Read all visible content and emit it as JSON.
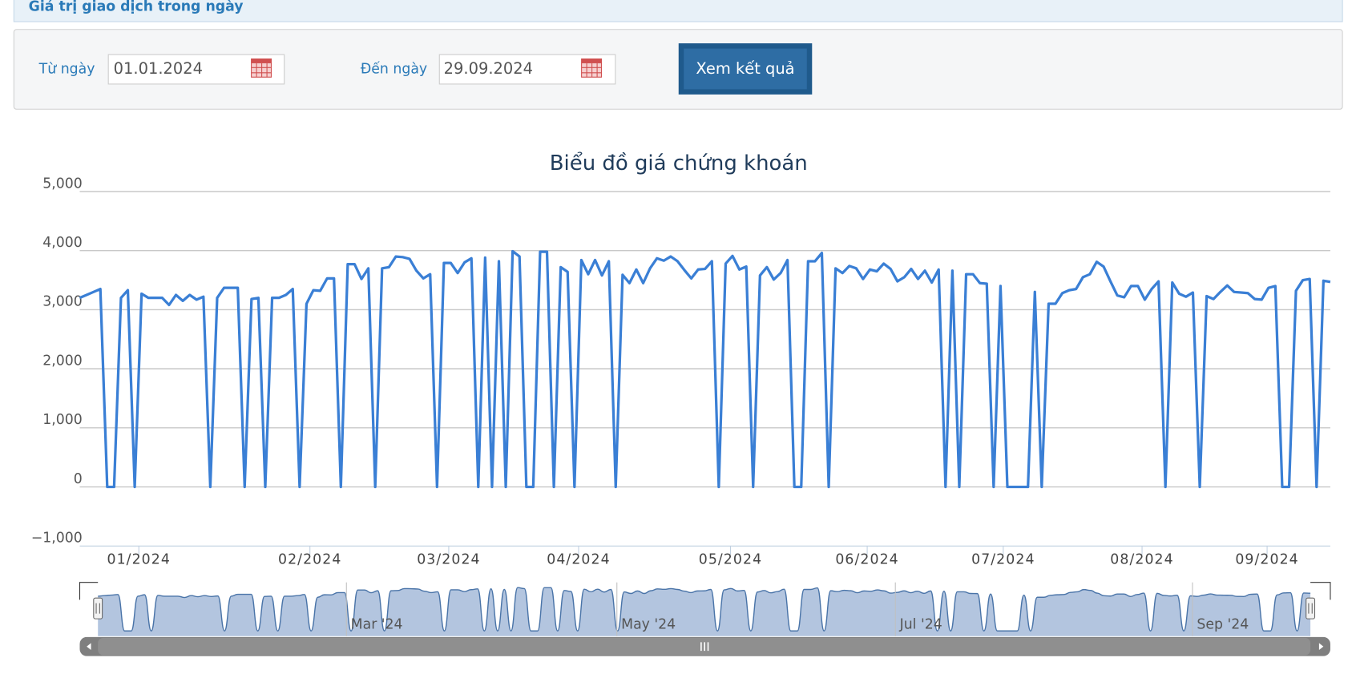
{
  "header": {
    "title": "Giá trị giao dịch trong ngày"
  },
  "form": {
    "from_label": "Từ ngày",
    "from_value": "01.01.2024",
    "to_label": "Đến ngày",
    "to_value": "29.09.2024",
    "button": "Xem kết quả"
  },
  "chart_data": {
    "type": "line",
    "title": "Biểu đồ giá chứng khoán",
    "series": [
      {
        "color": "#3a7fd5",
        "values": [
          3200,
          3250,
          3300,
          3350,
          0,
          0,
          3200,
          3330,
          0,
          3270,
          3200,
          3200,
          3200,
          3080,
          3250,
          3150,
          3250,
          3170,
          3220,
          0,
          3200,
          3370,
          3370,
          3370,
          0,
          3180,
          3200,
          0,
          3200,
          3200,
          3250,
          3350,
          0,
          3100,
          3330,
          3320,
          3530,
          3530,
          0,
          3770,
          3770,
          3520,
          3700,
          0,
          3700,
          3720,
          3900,
          3890,
          3860,
          3660,
          3530,
          3600,
          0,
          3790,
          3790,
          3620,
          3800,
          3870,
          0,
          3880,
          0,
          3820,
          0,
          3990,
          3900,
          0,
          0,
          3980,
          3980,
          0,
          3720,
          3640,
          0,
          3840,
          3600,
          3840,
          3580,
          3820,
          0,
          3590,
          3450,
          3680,
          3450,
          3700,
          3870,
          3830,
          3900,
          3820,
          3670,
          3530,
          3680,
          3690,
          3820,
          0,
          3780,
          3910,
          3680,
          3730,
          0,
          3580,
          3720,
          3510,
          3620,
          3840,
          0,
          0,
          3820,
          3820,
          3960,
          0,
          3700,
          3620,
          3740,
          3700,
          3520,
          3680,
          3650,
          3780,
          3690,
          3480,
          3550,
          3690,
          3520,
          3660,
          3460,
          3680,
          0,
          3660,
          0,
          3600,
          3600,
          3450,
          3440,
          0,
          3400,
          0,
          0,
          0,
          0,
          3300,
          0,
          3100,
          3100,
          3280,
          3330,
          3350,
          3550,
          3600,
          3810,
          3730,
          3480,
          3240,
          3210,
          3400,
          3400,
          3170,
          3350,
          3480,
          0,
          3460,
          3270,
          3220,
          3290,
          0,
          3230,
          3180,
          3300,
          3410,
          3300,
          3290,
          3280,
          3180,
          3170,
          3370,
          3400,
          0,
          0,
          3320,
          3500,
          3520,
          0,
          3490,
          3470
        ]
      }
    ],
    "xlim": [
      0,
      182
    ],
    "xticks": [
      {
        "value": 8.6,
        "label": "01/2024"
      },
      {
        "value": 33.5,
        "label": "02/2024"
      },
      {
        "value": 53.7,
        "label": "03/2024"
      },
      {
        "value": 72.6,
        "label": "04/2024"
      },
      {
        "value": 94.7,
        "label": "05/2024"
      },
      {
        "value": 114.6,
        "label": "06/2024"
      },
      {
        "value": 134.4,
        "label": "07/2024"
      },
      {
        "value": 154.6,
        "label": "08/2024"
      },
      {
        "value": 172.8,
        "label": "09/2024"
      }
    ],
    "ylim": [
      -1000,
      5000
    ],
    "yticks": [
      {
        "value": -1000,
        "label": "−1,000"
      },
      0,
      {
        "value": 1000,
        "label": "1,000"
      },
      {
        "value": 2000,
        "label": "2,000"
      },
      {
        "value": 3000,
        "label": "3,000"
      },
      {
        "value": 4000,
        "label": "4,000"
      },
      {
        "value": 5000,
        "label": "5,000"
      }
    ],
    "grid": true,
    "navigator": {
      "xticks": [
        {
          "value": 37.3,
          "label": "Mar '24"
        },
        {
          "value": 77.9,
          "label": "May '24"
        },
        {
          "value": 119.7,
          "label": "Jul '24"
        },
        {
          "value": 164.3,
          "label": "Sep '24"
        }
      ]
    }
  }
}
